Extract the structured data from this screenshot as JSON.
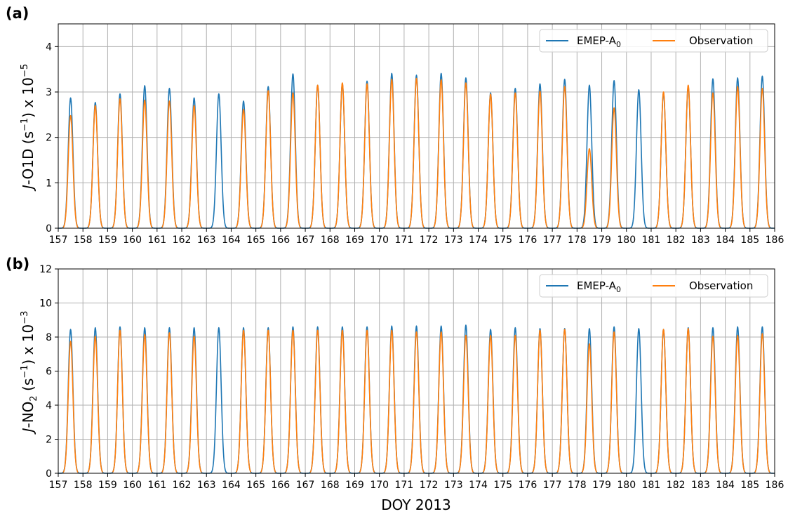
{
  "figure": {
    "xlabel": "DOY 2013"
  },
  "chart_data": [
    {
      "type": "line",
      "panel_label": "(a)",
      "ylabel_main": "-O1D (s",
      "ylabel_italic": "J",
      "ylabel_exp": "−1",
      "ylabel_tail": ") x 10",
      "ylabel_tail_exp": "−5",
      "xlim": [
        157,
        186
      ],
      "ylim": [
        0,
        4.5
      ],
      "xticks": [
        "157",
        "158",
        "159",
        "160",
        "161",
        "162",
        "163",
        "164",
        "165",
        "166",
        "167",
        "168",
        "169",
        "170",
        "171",
        "172",
        "173",
        "174",
        "175",
        "176",
        "177",
        "178",
        "179",
        "180",
        "181",
        "182",
        "183",
        "184",
        "185",
        "186"
      ],
      "yticks": [
        "0",
        "1",
        "2",
        "3",
        "4"
      ],
      "ytick_values": [
        0,
        1,
        2,
        3,
        4
      ],
      "grid": true,
      "legend_position": "top-right",
      "series": [
        {
          "name": "EMEP-A",
          "name_sub": "0",
          "color": "#1f77b4",
          "daily_peaks": [
            2.87,
            2.77,
            2.96,
            3.14,
            3.08,
            2.87,
            2.96,
            2.8,
            3.12,
            3.4,
            3.15,
            3.18,
            3.24,
            3.41,
            3.37,
            3.41,
            3.31,
            2.98,
            3.08,
            3.18,
            3.28,
            3.15,
            3.25,
            3.05,
            2.98,
            3.12,
            3.29,
            3.31,
            3.35
          ]
        },
        {
          "name": "Observation",
          "color": "#ff7f0e",
          "daily_peaks": [
            2.48,
            2.7,
            2.85,
            2.82,
            2.8,
            2.7,
            null,
            2.62,
            3.03,
            2.98,
            3.15,
            3.2,
            3.18,
            3.28,
            3.3,
            3.27,
            3.2,
            2.95,
            2.98,
            3.02,
            3.12,
            1.75,
            2.65,
            null,
            3.0,
            3.15,
            2.98,
            3.12,
            3.08
          ]
        }
      ]
    },
    {
      "type": "line",
      "panel_label": "(b)",
      "ylabel_main": "-NO",
      "ylabel_italic": "J",
      "ylabel_sub": "2",
      "ylabel_tail": " (s",
      "ylabel_exp": "−1",
      "ylabel_tail2": ") x 10",
      "ylabel_tail_exp": "−3",
      "xlim": [
        157,
        186
      ],
      "ylim": [
        0,
        12
      ],
      "xticks": [
        "157",
        "158",
        "159",
        "160",
        "161",
        "162",
        "163",
        "164",
        "165",
        "166",
        "167",
        "168",
        "169",
        "170",
        "171",
        "172",
        "173",
        "174",
        "175",
        "176",
        "177",
        "178",
        "179",
        "180",
        "181",
        "182",
        "183",
        "184",
        "185",
        "186"
      ],
      "yticks": [
        "0",
        "2",
        "4",
        "6",
        "8",
        "10",
        "12"
      ],
      "ytick_values": [
        0,
        2,
        4,
        6,
        8,
        10,
        12
      ],
      "grid": true,
      "legend_position": "top-right",
      "series": [
        {
          "name": "EMEP-A",
          "name_sub": "0",
          "color": "#1f77b4",
          "daily_peaks": [
            8.45,
            8.55,
            8.6,
            8.55,
            8.55,
            8.55,
            8.55,
            8.55,
            8.55,
            8.6,
            8.6,
            8.6,
            8.6,
            8.65,
            8.65,
            8.65,
            8.7,
            8.45,
            8.55,
            8.5,
            8.5,
            8.5,
            8.6,
            8.5,
            8.45,
            8.55,
            8.55,
            8.6,
            8.6
          ]
        },
        {
          "name": "Observation",
          "color": "#ff7f0e",
          "daily_peaks": [
            7.75,
            8.05,
            8.4,
            8.15,
            8.25,
            8.05,
            null,
            8.4,
            8.4,
            8.4,
            8.4,
            8.4,
            8.4,
            8.4,
            8.3,
            8.3,
            8.1,
            8.1,
            8.1,
            8.4,
            8.45,
            7.6,
            8.3,
            null,
            8.45,
            8.5,
            8.05,
            8.1,
            8.2
          ]
        }
      ]
    }
  ]
}
